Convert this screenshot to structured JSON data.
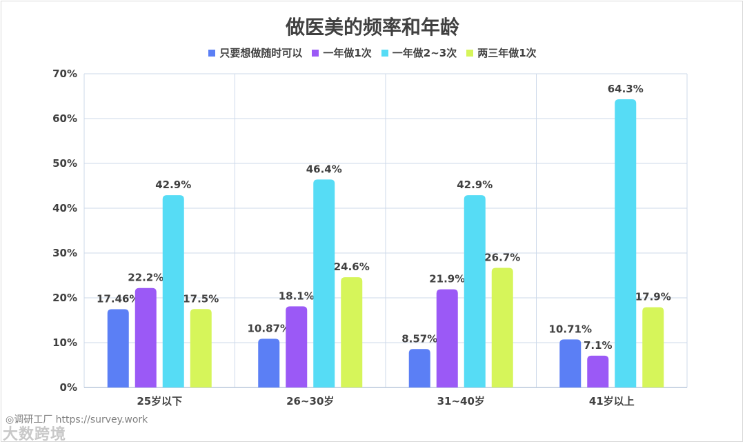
{
  "chart_data": {
    "type": "bar",
    "title": "做医美的频率和年龄",
    "categories": [
      "25岁以下",
      "26~30岁",
      "31~40岁",
      "41岁以上"
    ],
    "series": [
      {
        "name": "只要想做随时可以",
        "color": "#5b7ff5",
        "values": [
          17.46,
          10.87,
          8.57,
          10.71
        ],
        "labels": [
          "17.46%",
          "10.87%",
          "8.57%",
          "10.71%"
        ]
      },
      {
        "name": "一年做1次",
        "color": "#9b59f6",
        "values": [
          22.2,
          18.1,
          21.9,
          7.1
        ],
        "labels": [
          "22.2%",
          "18.1%",
          "21.9%",
          "7.1%"
        ]
      },
      {
        "name": "一年做2~3次",
        "color": "#56dcf5",
        "values": [
          42.9,
          46.4,
          42.9,
          64.3
        ],
        "labels": [
          "42.9%",
          "46.4%",
          "42.9%",
          "64.3%"
        ]
      },
      {
        "name": "两三年做1次",
        "color": "#d6f55a",
        "values": [
          17.5,
          24.6,
          26.7,
          17.9
        ],
        "labels": [
          "17.5%",
          "24.6%",
          "26.7%",
          "17.9%"
        ]
      }
    ],
    "ylim": [
      0,
      70
    ],
    "yticks": [
      "0%",
      "10%",
      "20%",
      "30%",
      "40%",
      "50%",
      "60%",
      "70%"
    ],
    "grid": true,
    "legend_position": "top"
  },
  "watermark": {
    "line1": "◎调研工厂 https://survey.work",
    "line2": "大数跨境"
  }
}
